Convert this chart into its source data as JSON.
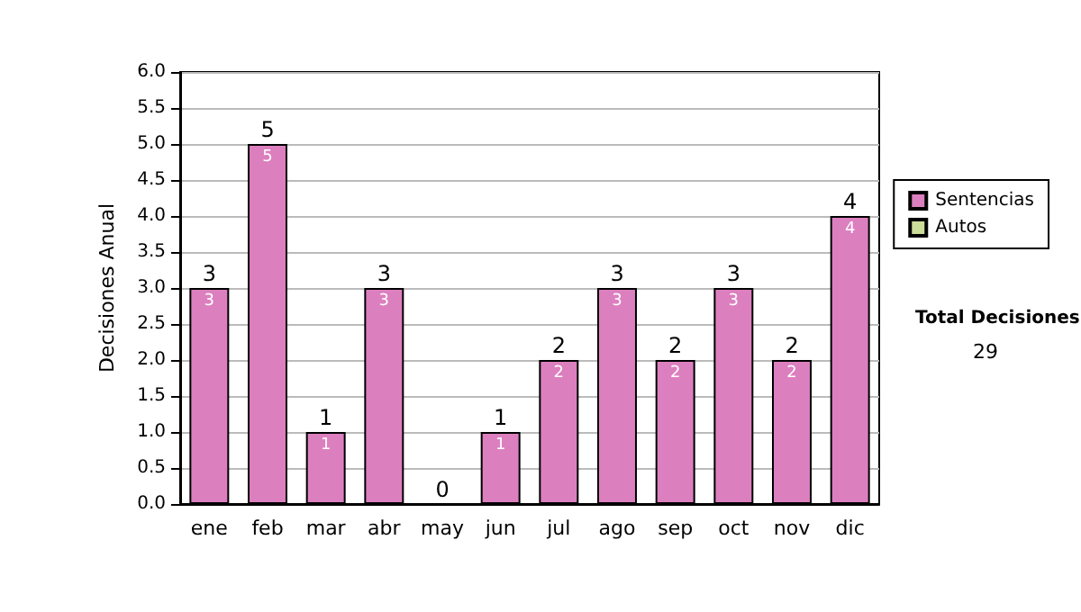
{
  "chart_data": {
    "type": "bar",
    "stacked": true,
    "ylabel": "Decisiones Anual",
    "categories": [
      "ene",
      "feb",
      "mar",
      "abr",
      "may",
      "jun",
      "jul",
      "ago",
      "sep",
      "oct",
      "nov",
      "dic"
    ],
    "series": [
      {
        "name": "Sentencias",
        "color": "#dc7fbf",
        "values": [
          3,
          5,
          1,
          3,
          0,
          1,
          2,
          3,
          2,
          3,
          2,
          4
        ],
        "value_labels": [
          "3",
          "5",
          "1",
          "3",
          null,
          "1",
          "2",
          "3",
          "2",
          "3",
          "2",
          "4"
        ]
      },
      {
        "name": "Autos",
        "color": "#ccdd99",
        "values": [
          0,
          0,
          0,
          0,
          0,
          0,
          0,
          0,
          0,
          0,
          0,
          0
        ]
      }
    ],
    "totals": [
      "3",
      "5",
      "1",
      "3",
      "0",
      "1",
      "2",
      "3",
      "2",
      "3",
      "2",
      "4"
    ],
    "ylim": [
      0,
      6
    ],
    "yticks": [
      {
        "value": 0,
        "label": "0.0"
      },
      {
        "value": 0.5,
        "label": "0.5"
      },
      {
        "value": 1,
        "label": "1.0"
      },
      {
        "value": 1.5,
        "label": "1.5"
      },
      {
        "value": 2,
        "label": "2.0"
      },
      {
        "value": 2.5,
        "label": "2.5"
      },
      {
        "value": 3,
        "label": "3.0"
      },
      {
        "value": 3.5,
        "label": "3.5"
      },
      {
        "value": 4,
        "label": "4.0"
      },
      {
        "value": 4.5,
        "label": "4.5"
      },
      {
        "value": 5,
        "label": "5.0"
      },
      {
        "value": 5.5,
        "label": "5.5"
      },
      {
        "value": 6,
        "label": "6.0"
      }
    ],
    "grid": "y",
    "legend": "right",
    "annotations": [
      "Total Decisiones",
      "29"
    ]
  }
}
